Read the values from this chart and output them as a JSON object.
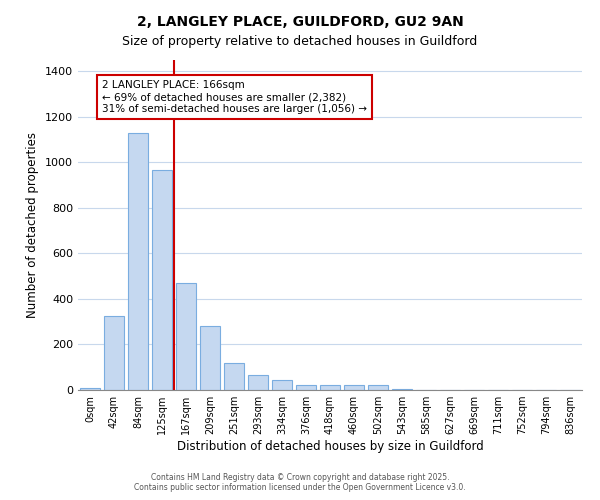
{
  "title_line1": "2, LANGLEY PLACE, GUILDFORD, GU2 9AN",
  "title_line2": "Size of property relative to detached houses in Guildford",
  "xlabel": "Distribution of detached houses by size in Guildford",
  "ylabel": "Number of detached properties",
  "bar_labels": [
    "0sqm",
    "42sqm",
    "84sqm",
    "125sqm",
    "167sqm",
    "209sqm",
    "251sqm",
    "293sqm",
    "334sqm",
    "376sqm",
    "418sqm",
    "460sqm",
    "502sqm",
    "543sqm",
    "585sqm",
    "627sqm",
    "669sqm",
    "711sqm",
    "752sqm",
    "794sqm",
    "836sqm"
  ],
  "bar_values": [
    10,
    325,
    1130,
    965,
    470,
    280,
    120,
    65,
    45,
    20,
    20,
    20,
    20,
    5,
    0,
    0,
    0,
    0,
    0,
    0,
    0
  ],
  "bar_color": "#c5d8f0",
  "bar_edge_color": "#7aade0",
  "plot_bg_color": "#ffffff",
  "fig_bg_color": "#ffffff",
  "grid_color": "#c8d8ec",
  "annotation_text": "2 LANGLEY PLACE: 166sqm\n← 69% of detached houses are smaller (2,382)\n31% of semi-detached houses are larger (1,056) →",
  "annotation_box_color": "#ffffff",
  "annotation_box_edge": "#cc0000",
  "vline_color": "#cc0000",
  "vline_x_index": 4,
  "ylim": [
    0,
    1450
  ],
  "yticks": [
    0,
    200,
    400,
    600,
    800,
    1000,
    1200,
    1400
  ],
  "footer_line1": "Contains HM Land Registry data © Crown copyright and database right 2025.",
  "footer_line2": "Contains public sector information licensed under the Open Government Licence v3.0."
}
